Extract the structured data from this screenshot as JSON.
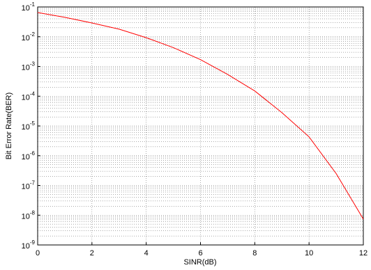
{
  "chart_data": {
    "type": "line",
    "xlabel": "SINR(dB)",
    "ylabel": "Bit Error Rate(BER)",
    "x": [
      0,
      1,
      2,
      3,
      4,
      5,
      6,
      7,
      8,
      9,
      10,
      11,
      12
    ],
    "series": [
      {
        "color": "#ff0000",
        "values": [
          0.065,
          0.045,
          0.029,
          0.018,
          0.0093,
          0.0043,
          0.0017,
          0.00054,
          0.00015,
          2.8e-05,
          4.3e-06,
          2.5e-07,
          7.4e-09
        ]
      }
    ],
    "xlim": [
      0,
      12
    ],
    "xticks": [
      0,
      2,
      4,
      6,
      8,
      10,
      12
    ],
    "ylim": [
      1e-09,
      0.1
    ],
    "ylog": true,
    "grid": true,
    "yticks": [
      {
        "value": 1e-09,
        "label": "10",
        "exponent": "-9"
      },
      {
        "value": 1e-08,
        "label": "10",
        "exponent": "-8"
      },
      {
        "value": 1e-07,
        "label": "10",
        "exponent": "-7"
      },
      {
        "value": 1e-06,
        "label": "10",
        "exponent": "-6"
      },
      {
        "value": 1e-05,
        "label": "10",
        "exponent": "-5"
      },
      {
        "value": 0.0001,
        "label": "10",
        "exponent": "-4"
      },
      {
        "value": 0.001,
        "label": "10",
        "exponent": "-3"
      },
      {
        "value": 0.01,
        "label": "10",
        "exponent": "-2"
      },
      {
        "value": 0.1,
        "label": "10",
        "exponent": "-1"
      }
    ],
    "yminorticks": [
      2e-09,
      3e-09,
      4e-09,
      5e-09,
      6e-09,
      7e-09,
      8e-09,
      9e-09,
      2e-08,
      3e-08,
      4e-08,
      5e-08,
      6e-08,
      7e-08,
      8e-08,
      9e-08,
      2e-07,
      3e-07,
      4e-07,
      5e-07,
      6e-07,
      7e-07,
      8e-07,
      9e-07,
      2e-06,
      3e-06,
      4e-06,
      5e-06,
      6e-06,
      7e-06,
      8e-06,
      9e-06,
      2e-05,
      3e-05,
      4e-05,
      5e-05,
      6e-05,
      7e-05,
      8e-05,
      9e-05,
      0.0002,
      0.0003,
      0.0004,
      0.0005,
      0.0006,
      0.0007,
      0.0008,
      0.0009,
      0.002,
      0.003,
      0.004,
      0.005,
      0.006,
      0.007,
      0.008,
      0.009,
      0.02,
      0.03,
      0.04,
      0.05,
      0.06,
      0.07,
      0.08,
      0.09
    ]
  }
}
